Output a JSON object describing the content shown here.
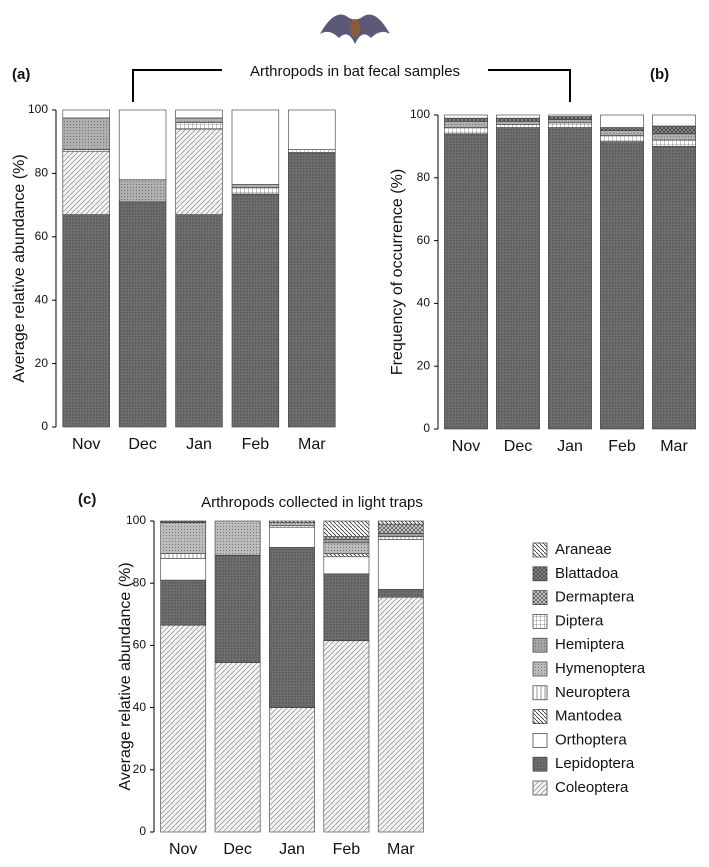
{
  "shared_title": "Arthropods in bat fecal samples",
  "chart_data": [
    {
      "type": "bar",
      "stacked": true,
      "label": "(a)",
      "y_label": "Average relative abundance (%)",
      "categories": [
        "Nov",
        "Dec",
        "Jan",
        "Feb",
        "Mar"
      ],
      "ylim": [
        0,
        100
      ],
      "yticks": [
        0,
        20,
        40,
        60,
        80,
        100
      ],
      "series": [
        {
          "name": "Lepidoptera",
          "color": "#6f6f6f",
          "pattern": "dense",
          "values": [
            67,
            71,
            67,
            73.5,
            86.5
          ]
        },
        {
          "name": "Coleoptera",
          "color": "#f4f4f4",
          "pattern": "diag",
          "values": [
            20,
            0,
            27,
            0,
            0
          ]
        },
        {
          "name": "Diptera",
          "color": "#ffffff",
          "pattern": "grid",
          "values": [
            0.5,
            0,
            2,
            2,
            1
          ]
        },
        {
          "name": "Hemiptera",
          "color": "#b0b0b0",
          "pattern": "dots",
          "values": [
            10,
            7,
            1.5,
            1,
            0
          ]
        },
        {
          "name": "Orthoptera",
          "color": "#ffffff",
          "pattern": "none",
          "values": [
            2.5,
            22,
            2.5,
            23.5,
            12.5
          ]
        }
      ]
    },
    {
      "type": "bar",
      "stacked": true,
      "label": "(b)",
      "y_label": "Frequency of occurrence (%)",
      "categories": [
        "Nov",
        "Dec",
        "Jan",
        "Feb",
        "Mar"
      ],
      "ylim": [
        0,
        100
      ],
      "yticks": [
        0,
        20,
        40,
        60,
        80,
        100
      ],
      "series": [
        {
          "name": "Lepidoptera",
          "color": "#6f6f6f",
          "pattern": "dense",
          "values": [
            94,
            96,
            96,
            91.5,
            90
          ]
        },
        {
          "name": "Diptera",
          "color": "#ffffff",
          "pattern": "grid",
          "values": [
            2,
            1,
            1.5,
            2,
            2
          ]
        },
        {
          "name": "Hemiptera",
          "color": "#b0b0b0",
          "pattern": "dots",
          "values": [
            2,
            1,
            1,
            1.5,
            2
          ]
        },
        {
          "name": "Blattadoa",
          "color": "#8a8a8a",
          "pattern": "cross",
          "values": [
            1,
            1,
            1,
            1,
            2.5
          ]
        },
        {
          "name": "Orthoptera",
          "color": "#ffffff",
          "pattern": "none",
          "values": [
            1,
            1,
            0.5,
            4,
            3.5
          ]
        }
      ]
    },
    {
      "type": "bar",
      "stacked": true,
      "label": "(c)",
      "title": "Arthropods collected in light traps",
      "y_label": "Average relative abundance (%)",
      "categories": [
        "Nov",
        "Dec",
        "Jan",
        "Feb",
        "Mar"
      ],
      "ylim": [
        0,
        100
      ],
      "yticks": [
        0,
        20,
        40,
        60,
        80,
        100
      ],
      "legend": "right",
      "series": [
        {
          "name": "Coleoptera",
          "color": "#f4f4f4",
          "pattern": "diag",
          "values": [
            66.5,
            54.5,
            40,
            61.5,
            75.5
          ]
        },
        {
          "name": "Lepidoptera",
          "color": "#6f6f6f",
          "pattern": "dense",
          "values": [
            14.5,
            34.5,
            51.5,
            21.5,
            2.5
          ]
        },
        {
          "name": "Orthoptera",
          "color": "#ffffff",
          "pattern": "none",
          "values": [
            7,
            0,
            6.5,
            5.5,
            16
          ]
        },
        {
          "name": "Mantodea",
          "color": "#ffffff",
          "pattern": "backdiag",
          "values": [
            0,
            0,
            0,
            1,
            0
          ]
        },
        {
          "name": "Neuroptera",
          "color": "#ffffff",
          "pattern": "vlines",
          "values": [
            1.5,
            0,
            0.5,
            0,
            1
          ]
        },
        {
          "name": "Hymenoptera",
          "color": "#bdbdbd",
          "pattern": "dots",
          "values": [
            10,
            11,
            1,
            3.5,
            0
          ]
        },
        {
          "name": "Hemiptera",
          "color": "#a6a6a6",
          "pattern": "dots",
          "values": [
            0,
            0,
            0,
            1,
            1
          ]
        },
        {
          "name": "Diptera",
          "color": "#ffffff",
          "pattern": "grid",
          "values": [
            0,
            0,
            0,
            0,
            0
          ]
        },
        {
          "name": "Dermaptera",
          "color": "#d0d0d0",
          "pattern": "cross",
          "values": [
            0,
            0,
            0,
            1,
            3
          ]
        },
        {
          "name": "Blattadoa",
          "color": "#8a8a8a",
          "pattern": "cross",
          "values": [
            0.5,
            0,
            0,
            0,
            0
          ]
        },
        {
          "name": "Araneae",
          "color": "#ffffff",
          "pattern": "backdiag",
          "values": [
            0,
            0,
            0.5,
            5,
            1
          ]
        }
      ]
    }
  ]
}
